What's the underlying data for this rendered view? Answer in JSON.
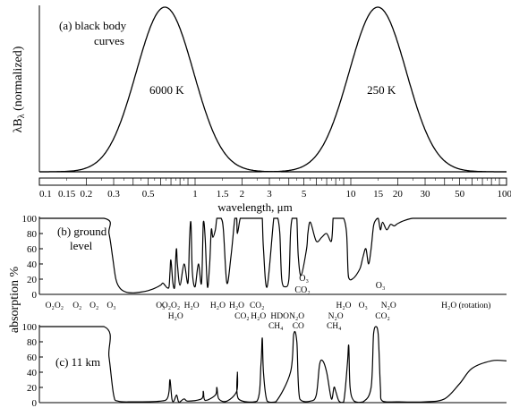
{
  "chart_data": [
    {
      "panel": "a",
      "type": "line",
      "title": "(a) black body curves",
      "title_lines": [
        "(a)  black body",
        "curves"
      ],
      "ylabel": "λBλ (normalized)",
      "ylabel_parts": {
        "lambda": "λ",
        "B": "B",
        "sub": "λ",
        "rest": " (normalized)"
      },
      "x_scale": "log",
      "series": [
        {
          "name": "6000 K",
          "peak_um": 0.64,
          "shape_dex": 0.26
        },
        {
          "name": "250 K",
          "peak_um": 14.9,
          "shape_dex": 0.26
        }
      ],
      "xlim": [
        0.1,
        100
      ],
      "ylim": [
        0,
        1
      ]
    },
    {
      "panel": "axis",
      "type": "line",
      "x_scale": "log",
      "xlabel": "wavelength, μm",
      "xticks": [
        {
          "v": 0.1,
          "label": "0.1"
        },
        {
          "v": 0.15,
          "label": "0.15"
        },
        {
          "v": 0.2,
          "label": "0.2"
        },
        {
          "v": 0.3,
          "label": "0.3"
        },
        {
          "v": 0.5,
          "label": "0.5"
        },
        {
          "v": 1,
          "label": "1"
        },
        {
          "v": 1.5,
          "label": "1.5"
        },
        {
          "v": 2,
          "label": "2"
        },
        {
          "v": 3,
          "label": "3"
        },
        {
          "v": 5,
          "label": "5"
        },
        {
          "v": 10,
          "label": "10"
        },
        {
          "v": 15,
          "label": "15"
        },
        {
          "v": 20,
          "label": "20"
        },
        {
          "v": 30,
          "label": "30"
        },
        {
          "v": 50,
          "label": "50"
        },
        {
          "v": 100,
          "label": "100"
        }
      ]
    },
    {
      "panel": "b",
      "type": "line",
      "title": "(b) ground level",
      "title_lines": [
        "(b) ground",
        "level"
      ],
      "ylabel": "absorption %",
      "x_scale": "log",
      "xlim": [
        0.1,
        100
      ],
      "ylim": [
        0,
        100
      ],
      "yticks": [
        0,
        20,
        40,
        60,
        80,
        100
      ],
      "x": [
        0.1,
        0.26,
        0.28,
        0.295,
        0.31,
        0.33,
        0.36,
        0.4,
        0.45,
        0.5,
        0.55,
        0.6,
        0.62,
        0.64,
        0.66,
        0.68,
        0.69,
        0.7,
        0.72,
        0.74,
        0.75,
        0.76,
        0.77,
        0.8,
        0.85,
        0.9,
        0.92,
        0.94,
        0.96,
        1.0,
        1.05,
        1.1,
        1.13,
        1.16,
        1.2,
        1.24,
        1.27,
        1.3,
        1.35,
        1.38,
        1.42,
        1.47,
        1.52,
        1.6,
        1.7,
        1.8,
        1.85,
        1.87,
        1.95,
        2.05,
        2.2,
        2.4,
        2.55,
        2.65,
        2.7,
        2.75,
        2.9,
        3.2,
        3.3,
        3.4,
        3.5,
        3.6,
        3.8,
        4.0,
        4.1,
        4.2,
        4.3,
        4.4,
        4.5,
        4.6,
        4.8,
        5.2,
        5.3,
        5.5,
        6.0,
        6.5,
        7.0,
        7.5,
        7.7,
        7.8,
        8.0,
        8.5,
        9.0,
        9.4,
        9.6,
        9.8,
        10.2,
        10.8,
        11.5,
        12,
        12.5,
        13,
        13.5,
        14,
        14.5,
        15,
        15.5,
        16,
        17,
        18,
        19,
        20,
        22,
        25,
        30,
        40,
        60,
        100
      ],
      "y": [
        100,
        100,
        80,
        50,
        20,
        8,
        3,
        2,
        3,
        5,
        8,
        12,
        15,
        12,
        9,
        10,
        30,
        45,
        15,
        10,
        45,
        60,
        40,
        12,
        40,
        15,
        70,
        95,
        30,
        10,
        40,
        15,
        95,
        75,
        10,
        40,
        85,
        75,
        85,
        100,
        100,
        100,
        85,
        15,
        50,
        100,
        100,
        80,
        100,
        100,
        100,
        100,
        100,
        100,
        100,
        60,
        10,
        100,
        100,
        100,
        80,
        20,
        10,
        20,
        80,
        100,
        100,
        100,
        100,
        50,
        25,
        60,
        80,
        95,
        70,
        75,
        80,
        70,
        100,
        100,
        100,
        100,
        100,
        80,
        30,
        20,
        20,
        25,
        35,
        50,
        60,
        40,
        60,
        90,
        98,
        100,
        85,
        95,
        85,
        92,
        90,
        93,
        97,
        100,
        100,
        100,
        100,
        100
      ]
    },
    {
      "panel": "c",
      "type": "line",
      "title": "(c) 11 km",
      "ylabel": "absorption %",
      "x_scale": "log",
      "xlim": [
        0.1,
        100
      ],
      "ylim": [
        0,
        100
      ],
      "yticks": [
        0,
        20,
        40,
        60,
        80,
        100
      ],
      "x": [
        0.1,
        0.26,
        0.28,
        0.3,
        0.32,
        0.4,
        0.6,
        0.66,
        0.68,
        0.69,
        0.71,
        0.73,
        0.76,
        0.78,
        0.8,
        0.85,
        0.9,
        1.1,
        1.13,
        1.16,
        1.35,
        1.38,
        1.42,
        1.6,
        1.85,
        1.87,
        1.9,
        2.5,
        2.65,
        2.7,
        2.75,
        2.9,
        3.3,
        4.1,
        4.3,
        4.5,
        4.7,
        5.5,
        6.0,
        6.3,
        6.6,
        7.0,
        7.5,
        7.8,
        8.0,
        8.4,
        9.0,
        9.5,
        9.7,
        9.9,
        10.5,
        12,
        13.5,
        14,
        14.5,
        15,
        15.5,
        16,
        20,
        30,
        40,
        50,
        60,
        80,
        100
      ],
      "y": [
        100,
        100,
        60,
        10,
        2,
        1,
        2,
        5,
        15,
        30,
        5,
        2,
        10,
        2,
        1,
        5,
        2,
        5,
        15,
        3,
        10,
        20,
        5,
        2,
        15,
        40,
        5,
        2,
        50,
        85,
        40,
        2,
        1,
        40,
        90,
        80,
        5,
        2,
        10,
        50,
        55,
        40,
        5,
        20,
        15,
        2,
        1,
        50,
        75,
        20,
        2,
        1,
        20,
        90,
        100,
        90,
        20,
        2,
        1,
        1,
        5,
        25,
        45,
        55,
        55
      ]
    }
  ],
  "annotations_b": [
    {
      "text": "O₃",
      "x": 5.0,
      "y": 22
    },
    {
      "text": "CO₂",
      "x": 4.9,
      "y": 8
    },
    {
      "text": "O₃",
      "x": 15.5,
      "y": 10
    }
  ],
  "gas_rows": [
    {
      "row": 1,
      "labels": [
        {
          "text": "O₂O₂",
          "x": 0.125
        },
        {
          "text": "O₂",
          "x": 0.175
        },
        {
          "text": "O₂",
          "x": 0.225
        },
        {
          "text": "O₃",
          "x": 0.29
        },
        {
          "text": "O₃",
          "x": 0.6
        },
        {
          "text": "O₂O₂",
          "x": 0.7
        },
        {
          "text": "H₂O",
          "x": 0.95
        },
        {
          "text": "H₂O",
          "x": 1.4
        },
        {
          "text": "H₂O",
          "x": 1.85
        },
        {
          "text": "CO₂",
          "x": 2.5
        },
        {
          "text": "H₂O",
          "x": 9.0
        },
        {
          "text": "O₃",
          "x": 12.0
        },
        {
          "text": "N₂O",
          "x": 17.5
        },
        {
          "text": "H₂O (rotation)",
          "x": 55.0
        }
      ]
    },
    {
      "row": 2,
      "labels": [
        {
          "text": "H₂O",
          "x": 0.75
        },
        {
          "text": "CO₂",
          "x": 2.0
        },
        {
          "text": "H₂O",
          "x": 2.55
        },
        {
          "text": "HDO",
          "x": 3.5
        },
        {
          "text": "N₂O",
          "x": 4.5
        },
        {
          "text": "N₂O",
          "x": 8.0
        },
        {
          "text": "CO₂",
          "x": 16.0
        }
      ]
    },
    {
      "row": 3,
      "labels": [
        {
          "text": "CH₄",
          "x": 3.3
        },
        {
          "text": "CO",
          "x": 4.6
        },
        {
          "text": "CH₄",
          "x": 7.8
        }
      ]
    }
  ]
}
